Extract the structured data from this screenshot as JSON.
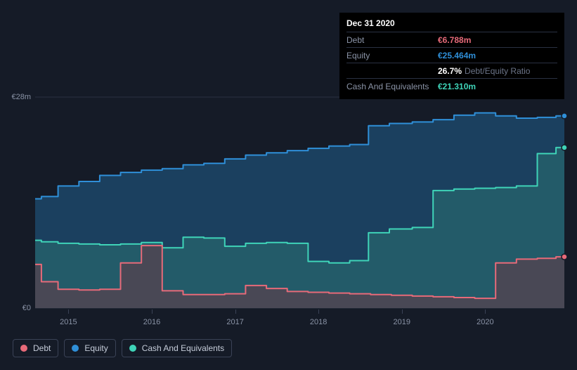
{
  "chart": {
    "type": "area",
    "background_color": "#151b27",
    "grid_color": "#2a3142",
    "text_color": "#8a93a6",
    "plot_aspect_note": "stacked-esque filled areas, step interpolation",
    "ylim": [
      0,
      28
    ],
    "y_unit_prefix": "€",
    "y_unit_suffix": "m",
    "yticks": [
      {
        "value": 0,
        "label": "€0"
      },
      {
        "value": 28,
        "label": "€28m"
      }
    ],
    "x_domain": [
      2014.6,
      2020.95
    ],
    "xticks": [
      {
        "value": 2015,
        "label": "2015"
      },
      {
        "value": 2016,
        "label": "2016"
      },
      {
        "value": 2017,
        "label": "2017"
      },
      {
        "value": 2018,
        "label": "2018"
      },
      {
        "value": 2019,
        "label": "2019"
      },
      {
        "value": 2020,
        "label": "2020"
      }
    ],
    "series": [
      {
        "id": "equity",
        "label": "Equity",
        "stroke": "#2f8fd8",
        "fill": "#1e4e73",
        "fill_opacity": 0.75,
        "stroke_width": 2,
        "points": [
          [
            2014.6,
            14.5
          ],
          [
            2014.75,
            14.8
          ],
          [
            2015.0,
            16.2
          ],
          [
            2015.25,
            16.8
          ],
          [
            2015.5,
            17.6
          ],
          [
            2015.75,
            18.0
          ],
          [
            2016.0,
            18.3
          ],
          [
            2016.25,
            18.5
          ],
          [
            2016.5,
            19.0
          ],
          [
            2016.75,
            19.2
          ],
          [
            2017.0,
            19.8
          ],
          [
            2017.25,
            20.3
          ],
          [
            2017.5,
            20.6
          ],
          [
            2017.75,
            20.9
          ],
          [
            2018.0,
            21.2
          ],
          [
            2018.25,
            21.5
          ],
          [
            2018.5,
            21.7
          ],
          [
            2018.7,
            24.2
          ],
          [
            2019.0,
            24.5
          ],
          [
            2019.25,
            24.7
          ],
          [
            2019.5,
            25.0
          ],
          [
            2019.75,
            25.6
          ],
          [
            2020.0,
            25.9
          ],
          [
            2020.25,
            25.5
          ],
          [
            2020.5,
            25.2
          ],
          [
            2020.75,
            25.3
          ],
          [
            2020.95,
            25.5
          ]
        ]
      },
      {
        "id": "cash",
        "label": "Cash And Equivalents",
        "stroke": "#3fd4b8",
        "fill": "#2a6e6f",
        "fill_opacity": 0.6,
        "stroke_width": 2,
        "points": [
          [
            2014.6,
            9.0
          ],
          [
            2014.75,
            8.8
          ],
          [
            2015.0,
            8.6
          ],
          [
            2015.25,
            8.5
          ],
          [
            2015.5,
            8.4
          ],
          [
            2015.75,
            8.5
          ],
          [
            2016.0,
            8.7
          ],
          [
            2016.25,
            8.0
          ],
          [
            2016.5,
            9.4
          ],
          [
            2016.75,
            9.3
          ],
          [
            2017.0,
            8.2
          ],
          [
            2017.25,
            8.6
          ],
          [
            2017.5,
            8.7
          ],
          [
            2017.75,
            8.6
          ],
          [
            2018.0,
            6.2
          ],
          [
            2018.25,
            6.0
          ],
          [
            2018.5,
            6.3
          ],
          [
            2018.7,
            10.0
          ],
          [
            2019.0,
            10.5
          ],
          [
            2019.25,
            10.7
          ],
          [
            2019.5,
            15.6
          ],
          [
            2019.75,
            15.8
          ],
          [
            2020.0,
            15.9
          ],
          [
            2020.25,
            16.0
          ],
          [
            2020.5,
            16.2
          ],
          [
            2020.75,
            20.5
          ],
          [
            2020.95,
            21.3
          ]
        ]
      },
      {
        "id": "debt",
        "label": "Debt",
        "stroke": "#e76a79",
        "fill": "#6a3946",
        "fill_opacity": 0.55,
        "stroke_width": 2,
        "points": [
          [
            2014.6,
            5.8
          ],
          [
            2014.75,
            3.5
          ],
          [
            2015.0,
            2.5
          ],
          [
            2015.25,
            2.4
          ],
          [
            2015.5,
            2.5
          ],
          [
            2015.75,
            6.0
          ],
          [
            2016.0,
            8.3
          ],
          [
            2016.25,
            2.3
          ],
          [
            2016.5,
            1.8
          ],
          [
            2016.75,
            1.8
          ],
          [
            2017.0,
            1.9
          ],
          [
            2017.25,
            3.0
          ],
          [
            2017.5,
            2.6
          ],
          [
            2017.75,
            2.2
          ],
          [
            2018.0,
            2.1
          ],
          [
            2018.25,
            2.0
          ],
          [
            2018.5,
            1.9
          ],
          [
            2018.75,
            1.8
          ],
          [
            2019.0,
            1.7
          ],
          [
            2019.25,
            1.6
          ],
          [
            2019.5,
            1.5
          ],
          [
            2019.75,
            1.4
          ],
          [
            2020.0,
            1.3
          ],
          [
            2020.25,
            6.0
          ],
          [
            2020.5,
            6.5
          ],
          [
            2020.75,
            6.6
          ],
          [
            2020.95,
            6.8
          ]
        ]
      }
    ],
    "end_markers": [
      {
        "series": "equity",
        "x": 2020.95,
        "y": 25.5,
        "color": "#2f8fd8"
      },
      {
        "series": "cash",
        "x": 2020.95,
        "y": 21.3,
        "color": "#3fd4b8"
      },
      {
        "series": "debt",
        "x": 2020.95,
        "y": 6.8,
        "color": "#e76a79"
      }
    ]
  },
  "tooltip": {
    "date": "Dec 31 2020",
    "rows": [
      {
        "label": "Debt",
        "value": "€6.788m",
        "value_color": "#e76a79"
      },
      {
        "label": "Equity",
        "value": "€25.464m",
        "value_color": "#2f8fd8"
      },
      {
        "label": "",
        "value": "26.7%",
        "value_color": "#ffffff",
        "extra": "Debt/Equity Ratio"
      },
      {
        "label": "Cash And Equivalents",
        "value": "€21.310m",
        "value_color": "#3fd4b8"
      }
    ]
  },
  "legend": [
    {
      "id": "debt",
      "label": "Debt",
      "color": "#e76a79"
    },
    {
      "id": "equity",
      "label": "Equity",
      "color": "#2f8fd8"
    },
    {
      "id": "cash",
      "label": "Cash And Equivalents",
      "color": "#3fd4b8"
    }
  ]
}
